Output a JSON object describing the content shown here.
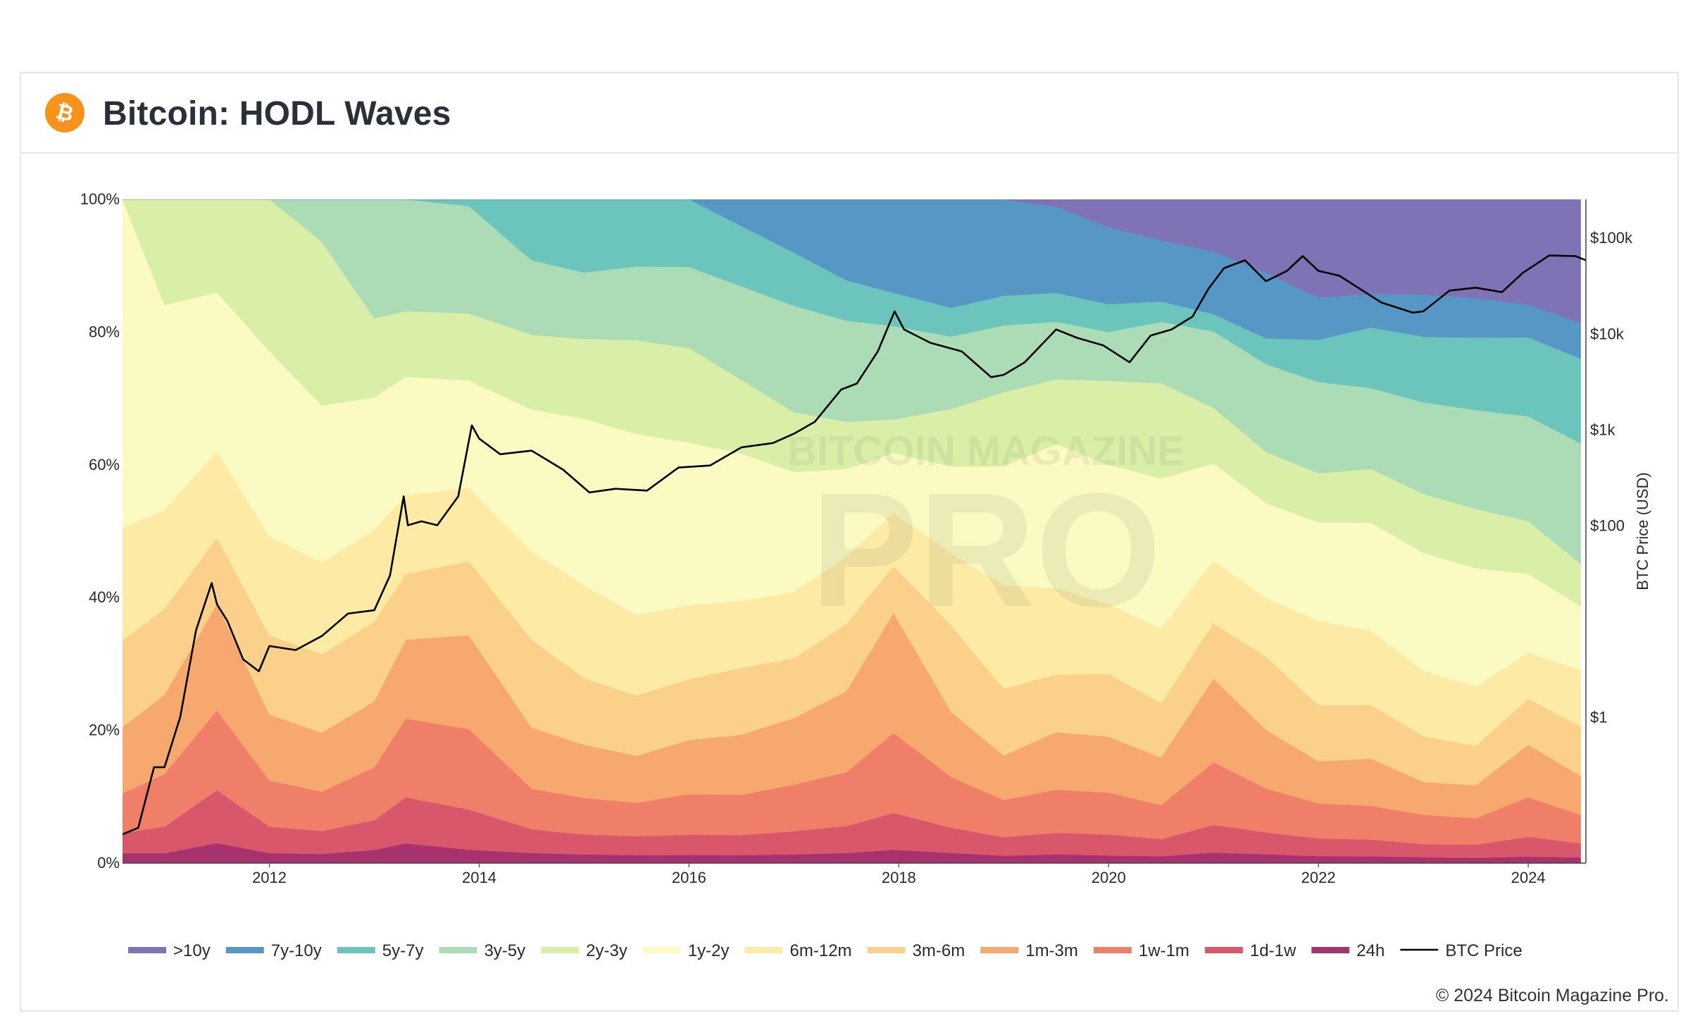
{
  "header": {
    "title": "Bitcoin: HODL Waves",
    "logo_icon": "bitcoin-icon",
    "logo_color": "#f7931a"
  },
  "watermark": {
    "line1": "BITCOIN MAGAZINE",
    "line2": "PRO"
  },
  "copyright": "© 2024 Bitcoin Magazine Pro.",
  "chart_data": {
    "type": "area",
    "stacked": true,
    "x": [
      2010.6,
      2011.0,
      2011.5,
      2012.0,
      2012.5,
      2013.0,
      2013.3,
      2013.9,
      2014.5,
      2015.0,
      2015.5,
      2016.0,
      2016.5,
      2017.0,
      2017.5,
      2017.95,
      2018.5,
      2019.0,
      2019.5,
      2020.0,
      2020.5,
      2021.0,
      2021.5,
      2022.0,
      2022.5,
      2023.0,
      2023.5,
      2024.0,
      2024.5
    ],
    "xlim": [
      2010.6,
      2024.55
    ],
    "xticks": [
      2012,
      2014,
      2016,
      2018,
      2020,
      2022,
      2024
    ],
    "xtick_labels": [
      "2012",
      "2014",
      "2016",
      "2018",
      "2020",
      "2022",
      "2024"
    ],
    "ylim": [
      0,
      100
    ],
    "yticks": [
      0,
      20,
      40,
      60,
      80,
      100
    ],
    "ytick_labels": [
      "0%",
      "20%",
      "40%",
      "60%",
      "80%",
      "100%"
    ],
    "y2label": "BTC Price (USD)",
    "y2scale": "log",
    "y2lim": [
      0.03,
      250000
    ],
    "y2ticks": [
      1,
      100,
      1000,
      10000,
      100000
    ],
    "y2tick_labels": [
      "$1",
      "$100",
      "$1k",
      "$10k",
      "$100k"
    ],
    "grid": false,
    "legend_position": "bottom",
    "series": [
      {
        "name": "24h",
        "color": "#a8326e",
        "values": [
          1.5,
          1.5,
          3.0,
          1.5,
          1.4,
          2.0,
          3.0,
          2.0,
          1.5,
          1.3,
          1.2,
          1.2,
          1.2,
          1.3,
          1.5,
          2.0,
          1.4,
          1.0,
          1.2,
          1.1,
          1.0,
          1.5,
          1.2,
          1.0,
          1.0,
          0.9,
          0.8,
          1.0,
          0.8
        ]
      },
      {
        "name": "1d-1w",
        "color": "#d9576b",
        "values": [
          3.0,
          4.0,
          8.0,
          4.0,
          3.5,
          4.5,
          7.0,
          6.0,
          3.5,
          3.0,
          2.8,
          3.0,
          3.0,
          3.5,
          4.0,
          5.5,
          3.5,
          2.5,
          3.0,
          3.0,
          2.5,
          4.0,
          3.0,
          2.5,
          2.5,
          2.0,
          2.0,
          3.0,
          2.0
        ]
      },
      {
        "name": "1w-1m",
        "color": "#f07f6a",
        "values": [
          6.0,
          8.0,
          12.0,
          7.0,
          6.0,
          8.0,
          12.0,
          12.0,
          6.0,
          5.5,
          5.0,
          6.0,
          6.0,
          7.0,
          8.0,
          12.0,
          7.0,
          5.0,
          6.0,
          6.0,
          5.0,
          9.0,
          6.0,
          5.0,
          5.0,
          4.5,
          4.0,
          6.0,
          4.0
        ]
      },
      {
        "name": "1m-3m",
        "color": "#f7a86e",
        "values": [
          10.0,
          12.0,
          16.0,
          10.0,
          9.0,
          10.0,
          12.0,
          14.0,
          9.0,
          8.0,
          7.0,
          8.0,
          9.0,
          10.0,
          12.0,
          18.0,
          9.0,
          6.0,
          8.0,
          8.0,
          7.0,
          12.0,
          8.0,
          6.0,
          7.0,
          5.0,
          5.0,
          8.0,
          5.5
        ]
      },
      {
        "name": "3m-6m",
        "color": "#fbd08a",
        "values": [
          13.0,
          13.0,
          10.0,
          12.0,
          12.0,
          12.0,
          10.0,
          11.0,
          13.0,
          10.0,
          9.0,
          9.0,
          10.0,
          9.0,
          10.0,
          7.0,
          12.0,
          9.0,
          8.0,
          9.0,
          8.0,
          8.0,
          10.0,
          8.0,
          8.0,
          7.0,
          6.0,
          7.0,
          7.0
        ]
      },
      {
        "name": "6m-12m",
        "color": "#fdeba5",
        "values": [
          17.0,
          15.0,
          13.0,
          15.0,
          14.0,
          14.0,
          12.0,
          11.0,
          13.0,
          14.0,
          12.0,
          11.0,
          10.0,
          10.0,
          10.0,
          8.0,
          10.0,
          14.0,
          12.0,
          10.0,
          11.0,
          9.0,
          8.0,
          12.0,
          11.0,
          10.0,
          9.0,
          7.0,
          8.0
        ]
      },
      {
        "name": "1y-2y",
        "color": "#fafac2",
        "values": [
          49.5,
          31.0,
          24.0,
          28.0,
          24.0,
          20.0,
          18.0,
          16.0,
          21.0,
          25.0,
          27.0,
          24.0,
          22.0,
          18.0,
          13.0,
          9.0,
          12.0,
          16.0,
          20.0,
          20.0,
          22.0,
          14.0,
          13.0,
          14.0,
          16.0,
          18.0,
          18.0,
          12.0,
          9.0
        ]
      },
      {
        "name": "2y-3y",
        "color": "#d9efa8",
        "values": [
          0.0,
          16.0,
          14.0,
          23.0,
          25.0,
          12.0,
          10.0,
          10.0,
          11.0,
          12.0,
          14.0,
          14.0,
          11.0,
          9.0,
          7.0,
          5.0,
          8.0,
          10.0,
          9.0,
          12.0,
          14.0,
          8.0,
          7.0,
          7.0,
          8.0,
          9.0,
          9.0,
          8.0,
          6.0
        ]
      },
      {
        "name": "3y-5y",
        "color": "#acdcb5",
        "values": [
          0.0,
          0.0,
          0.0,
          0.0,
          6.5,
          18.0,
          17.0,
          16.0,
          11.0,
          10.0,
          11.0,
          12.0,
          14.0,
          16.0,
          15.0,
          14.0,
          10.0,
          9.0,
          8.0,
          7.0,
          9.0,
          11.0,
          12.0,
          13.0,
          12.0,
          14.0,
          15.0,
          16.0,
          17.0
        ]
      },
      {
        "name": "5y-7y",
        "color": "#6cc5bd",
        "values": [
          0.0,
          0.0,
          0.0,
          0.0,
          0.0,
          0.0,
          0.0,
          1.0,
          9.0,
          11.0,
          10.0,
          10.0,
          9.0,
          8.0,
          6.0,
          5.0,
          4.0,
          4.0,
          4.0,
          4.0,
          3.0,
          2.5,
          3.5,
          6.0,
          9.0,
          10.0,
          11.0,
          12.0,
          12.0
        ]
      },
      {
        "name": "7y-10y",
        "color": "#5797c6",
        "values": [
          0.0,
          0.0,
          0.0,
          0.0,
          0.0,
          0.0,
          0.0,
          0.0,
          0.0,
          0.0,
          0.0,
          0.0,
          4.0,
          8.0,
          12.0,
          14.0,
          15.0,
          13.0,
          12.0,
          11.0,
          9.0,
          9.0,
          9.0,
          6.0,
          5.0,
          6.5,
          6.0,
          5.0,
          5.0
        ]
      },
      {
        "name": ">10y",
        "color": "#7f72b5",
        "values": [
          0.0,
          0.0,
          0.0,
          0.0,
          0.0,
          0.0,
          0.0,
          0.0,
          0.0,
          0.0,
          0.0,
          0.0,
          0.0,
          0.0,
          0.0,
          0.0,
          0.0,
          0.0,
          1.0,
          4.0,
          6.0,
          7.5,
          10.0,
          14.0,
          14.0,
          14.5,
          15.0,
          16.0,
          17.5
        ]
      }
    ],
    "line": {
      "name": "BTC Price",
      "color": "#000000",
      "axis": "y2",
      "x": [
        2010.6,
        2010.75,
        2010.9,
        2011.0,
        2011.15,
        2011.3,
        2011.45,
        2011.5,
        2011.6,
        2011.75,
        2011.9,
        2012.0,
        2012.25,
        2012.5,
        2012.75,
        2013.0,
        2013.15,
        2013.28,
        2013.32,
        2013.45,
        2013.6,
        2013.8,
        2013.93,
        2014.0,
        2014.2,
        2014.5,
        2014.8,
        2015.05,
        2015.3,
        2015.6,
        2015.9,
        2016.2,
        2016.5,
        2016.8,
        2017.0,
        2017.2,
        2017.45,
        2017.6,
        2017.8,
        2017.96,
        2018.05,
        2018.3,
        2018.6,
        2018.88,
        2019.0,
        2019.2,
        2019.5,
        2019.7,
        2019.95,
        2020.2,
        2020.4,
        2020.6,
        2020.8,
        2020.95,
        2021.1,
        2021.3,
        2021.5,
        2021.7,
        2021.85,
        2022.0,
        2022.2,
        2022.4,
        2022.6,
        2022.9,
        2023.0,
        2023.25,
        2023.5,
        2023.75,
        2023.95,
        2024.2,
        2024.45,
        2024.55
      ],
      "y": [
        0.06,
        0.07,
        0.3,
        0.3,
        1.0,
        8.0,
        25.0,
        15.0,
        10.0,
        4.0,
        3.0,
        5.5,
        5.0,
        7.0,
        12.0,
        13.0,
        30.0,
        200.0,
        100.0,
        110.0,
        100.0,
        200.0,
        1100.0,
        800.0,
        550.0,
        600.0,
        380.0,
        220.0,
        240.0,
        230.0,
        400.0,
        420.0,
        650.0,
        720.0,
        900.0,
        1200.0,
        2600.0,
        3000.0,
        6500.0,
        17000.0,
        11000.0,
        8000.0,
        6500.0,
        3500.0,
        3700.0,
        5000.0,
        11000.0,
        9000.0,
        7500.0,
        5000.0,
        9500.0,
        11000.0,
        15000.0,
        29000.0,
        48000.0,
        58000.0,
        35000.0,
        45000.0,
        64000.0,
        45000.0,
        40000.0,
        29000.0,
        21000.0,
        16500.0,
        17000.0,
        28000.0,
        30000.0,
        27000.0,
        43000.0,
        65000.0,
        64000.0,
        58000.0
      ]
    }
  }
}
